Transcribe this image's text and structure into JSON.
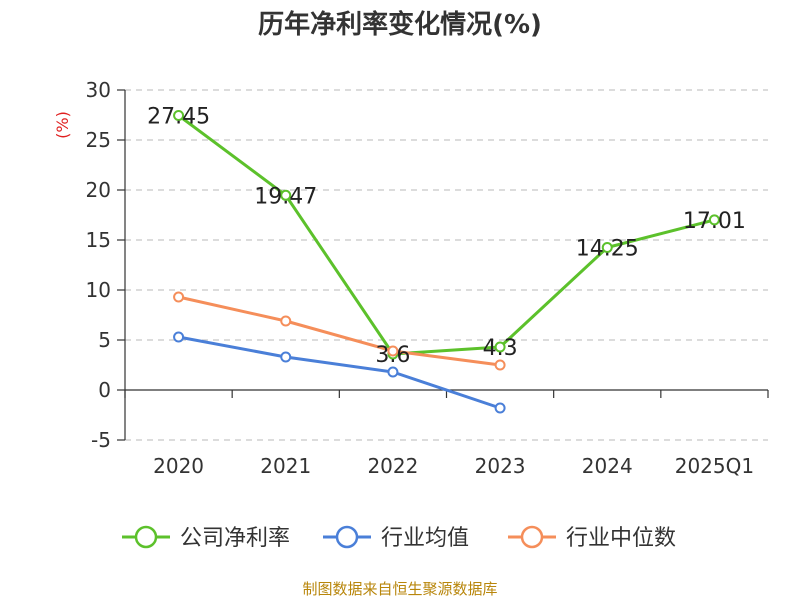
{
  "chart_data": {
    "type": "line",
    "title": "历年净利率变化情况(%)",
    "ylabel": "(%)",
    "ylim": [
      -5,
      30
    ],
    "yticks": [
      30,
      25,
      20,
      15,
      10,
      5,
      0,
      -5
    ],
    "grid": true,
    "legend_position": "bottom",
    "categories": [
      "2020",
      "2021",
      "2022",
      "2023",
      "2024",
      "2025Q1"
    ],
    "series": [
      {
        "name": "公司净利率",
        "color": "#5cc12b",
        "values": [
          27.45,
          19.47,
          3.6,
          4.3,
          14.25,
          17.01
        ],
        "labels": [
          "27.45",
          "19.47",
          "3.6",
          "4.3",
          "14.25",
          "17.01"
        ]
      },
      {
        "name": "行业均值",
        "color": "#4a7fd8",
        "values": [
          5.3,
          3.3,
          1.8,
          -1.8,
          null,
          null
        ]
      },
      {
        "name": "行业中位数",
        "color": "#f58e5a",
        "values": [
          9.3,
          6.9,
          3.9,
          2.5,
          null,
          null
        ]
      }
    ]
  },
  "footer": {
    "source": "制图数据来自恒生聚源数据库"
  }
}
